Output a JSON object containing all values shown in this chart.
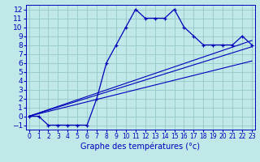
{
  "xlabel": "Graphe des températures (°c)",
  "bg_color": "#c0e8e8",
  "grid_color": "#96c8c8",
  "line_color": "#0000bb",
  "x_ticks": [
    0,
    1,
    2,
    3,
    4,
    5,
    6,
    7,
    8,
    9,
    10,
    11,
    12,
    13,
    14,
    15,
    16,
    17,
    18,
    19,
    20,
    21,
    22,
    23
  ],
  "y_ticks": [
    -1,
    0,
    1,
    2,
    3,
    4,
    5,
    6,
    7,
    8,
    9,
    10,
    11,
    12
  ],
  "ylim": [
    -1.5,
    12.5
  ],
  "xlim": [
    -0.3,
    23.3
  ],
  "main_x": [
    0,
    1,
    2,
    3,
    4,
    5,
    6,
    7,
    8,
    9,
    10,
    11,
    12,
    13,
    14,
    15,
    16,
    17,
    18,
    19,
    20,
    21,
    22,
    23
  ],
  "main_y": [
    0,
    0,
    -1,
    -1,
    -1,
    -1,
    -1,
    2,
    6,
    8,
    10,
    12,
    11,
    11,
    11,
    12,
    10,
    9,
    8,
    8,
    8,
    8,
    9,
    8
  ],
  "reg_lines": [
    {
      "x": [
        0,
        23
      ],
      "y": [
        0.0,
        8.5
      ]
    },
    {
      "x": [
        0,
        23
      ],
      "y": [
        0.0,
        7.8
      ]
    },
    {
      "x": [
        0,
        23
      ],
      "y": [
        0.0,
        6.2
      ]
    }
  ],
  "xlabel_fontsize": 7,
  "tick_fontsize_x": 5.5,
  "tick_fontsize_y": 6.5
}
